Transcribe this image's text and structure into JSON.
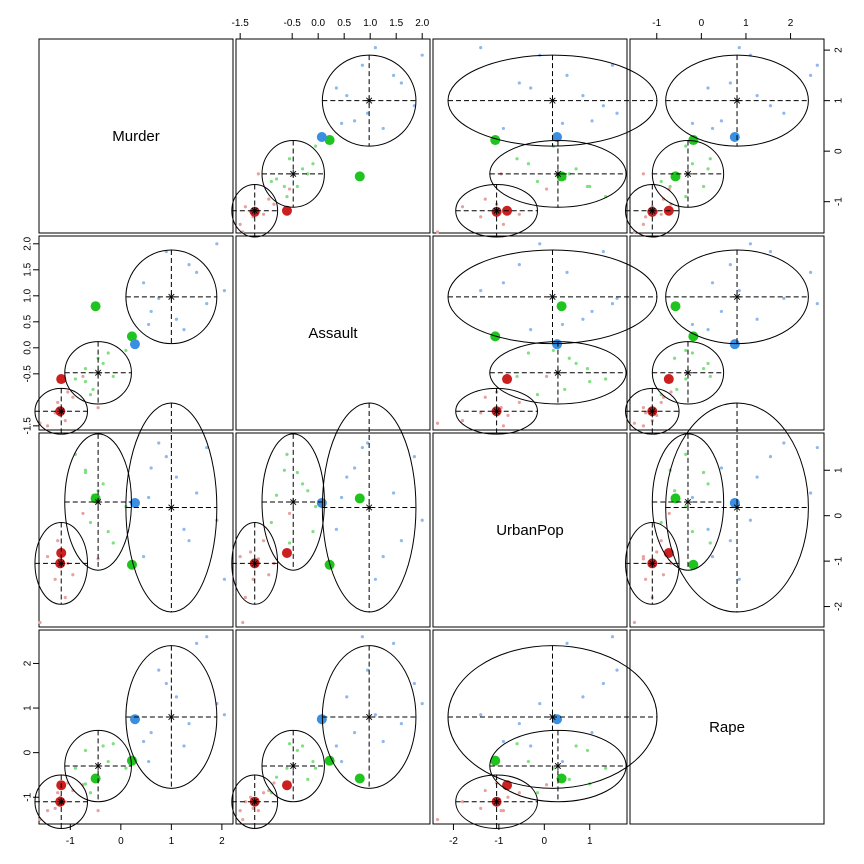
{
  "chart_data": {
    "type": "scatter",
    "layout": "pairs",
    "variables": [
      "Murder",
      "Assault",
      "UrbanPop",
      "Rape"
    ],
    "ranges": {
      "Murder": [
        -1.62,
        2.22
      ],
      "Assault": [
        -1.58,
        2.15
      ],
      "UrbanPop": [
        -2.45,
        1.82
      ],
      "Rape": [
        -1.6,
        2.75
      ]
    },
    "ticks": {
      "Murder": [
        "-1",
        "0",
        "1",
        "2"
      ],
      "Assault": [
        "-1.5",
        "-0.5",
        "0.0",
        "0.5",
        "1.0",
        "1.5",
        "2.0"
      ],
      "UrbanPop": [
        "-2",
        "-1",
        "0",
        "1"
      ],
      "Rape": [
        "-1",
        "0",
        "1",
        "2"
      ]
    },
    "tick_values": {
      "Murder": [
        -1,
        0,
        1,
        2
      ],
      "Assault": [
        -1.5,
        -0.5,
        0.0,
        0.5,
        1.0,
        1.5,
        2.0
      ],
      "UrbanPop": [
        -2,
        -1,
        0,
        1
      ],
      "Rape": [
        -1,
        0,
        1,
        2
      ]
    },
    "clusters": [
      {
        "color": "#e8a0a0",
        "center": {
          "Murder": -1.18,
          "Assault": -1.22,
          "UrbanPop": -1.05,
          "Rape": -1.1
        },
        "sd": {
          "Murder": 0.26,
          "Assault": 0.22,
          "UrbanPop": 0.45,
          "Rape": 0.3
        },
        "points": [
          {
            "Murder": -0.75,
            "Assault": -0.55,
            "UrbanPop": 0.05,
            "Rape": -0.72
          },
          {
            "Murder": -1.05,
            "Assault": -0.85,
            "UrbanPop": -1.05,
            "Rape": -0.68
          },
          {
            "Murder": -1.2,
            "Assault": -1.3,
            "UrbanPop": -0.8,
            "Rape": -1.0
          },
          {
            "Murder": -1.3,
            "Assault": -1.25,
            "UrbanPop": -1.4,
            "Rape": -1.25
          },
          {
            "Murder": -1.1,
            "Assault": -1.4,
            "UrbanPop": -1.8,
            "Rape": -1.1
          },
          {
            "Murder": -1.45,
            "Assault": -1.5,
            "UrbanPop": -0.9,
            "Rape": -1.3
          },
          {
            "Murder": -1.6,
            "Assault": -1.45,
            "UrbanPop": -2.35,
            "Rape": -1.5
          },
          {
            "Murder": -0.45,
            "Assault": -1.15,
            "UrbanPop": -0.95,
            "Rape": -1.3
          },
          {
            "Murder": -0.95,
            "Assault": -0.95,
            "UrbanPop": -1.3,
            "Rape": -0.85
          },
          {
            "Murder": -1.25,
            "Assault": -1.05,
            "UrbanPop": -0.55,
            "Rape": -0.9
          }
        ]
      },
      {
        "color": "#7fe07f",
        "center": {
          "Murder": -0.45,
          "Assault": -0.48,
          "UrbanPop": 0.3,
          "Rape": -0.3
        },
        "sd": {
          "Murder": 0.33,
          "Assault": 0.3,
          "UrbanPop": 0.75,
          "Rape": 0.4
        },
        "points": [
          {
            "Murder": -0.25,
            "Assault": -0.1,
            "UrbanPop": -0.35,
            "Rape": -0.2
          },
          {
            "Murder": -0.55,
            "Assault": -0.8,
            "UrbanPop": 0.45,
            "Rape": -0.55
          },
          {
            "Murder": -0.7,
            "Assault": -0.65,
            "UrbanPop": 1.0,
            "Rape": -0.7
          },
          {
            "Murder": -0.35,
            "Assault": -0.3,
            "UrbanPop": 0.7,
            "Rape": 0.15
          },
          {
            "Murder": -0.6,
            "Assault": -0.9,
            "UrbanPop": -0.15,
            "Rape": -0.9
          },
          {
            "Murder": 0.1,
            "Assault": -0.05,
            "UrbanPop": 0.2,
            "Rape": -0.35
          },
          {
            "Murder": -0.9,
            "Assault": -0.6,
            "UrbanPop": 1.35,
            "Rape": -0.35
          },
          {
            "Murder": -0.15,
            "Assault": -0.55,
            "UrbanPop": -0.6,
            "Rape": 0.2
          },
          {
            "Murder": -0.45,
            "Assault": -0.2,
            "UrbanPop": 0.55,
            "Rape": -0.6
          },
          {
            "Murder": -0.7,
            "Assault": -0.4,
            "UrbanPop": 0.95,
            "Rape": 0.05
          }
        ]
      },
      {
        "color": "#8fb8ee",
        "center": {
          "Murder": 1.0,
          "Assault": 0.98,
          "UrbanPop": 0.18,
          "Rape": 0.8
        },
        "sd": {
          "Murder": 0.45,
          "Assault": 0.45,
          "UrbanPop": 1.15,
          "Rape": 0.8
        },
        "points": [
          {
            "Murder": 1.5,
            "Assault": 1.45,
            "UrbanPop": 0.5,
            "Rape": 2.45
          },
          {
            "Murder": 1.9,
            "Assault": 2.0,
            "UrbanPop": -0.1,
            "Rape": 1.1
          },
          {
            "Murder": 0.6,
            "Assault": 0.7,
            "UrbanPop": 1.05,
            "Rape": 0.45
          },
          {
            "Murder": 1.35,
            "Assault": 1.6,
            "UrbanPop": -0.55,
            "Rape": 0.65
          },
          {
            "Murder": 0.75,
            "Assault": 0.95,
            "UrbanPop": 1.6,
            "Rape": 1.85
          },
          {
            "Murder": 1.1,
            "Assault": 0.55,
            "UrbanPop": 0.85,
            "Rape": 1.25
          },
          {
            "Murder": 0.45,
            "Assault": 1.25,
            "UrbanPop": -0.9,
            "Rape": 0.25
          },
          {
            "Murder": 2.05,
            "Assault": 1.1,
            "UrbanPop": -1.4,
            "Rape": 0.85
          },
          {
            "Murder": 0.9,
            "Assault": 1.85,
            "UrbanPop": 1.3,
            "Rape": 1.55
          },
          {
            "Murder": 1.25,
            "Assault": 0.35,
            "UrbanPop": -0.3,
            "Rape": 0.15
          },
          {
            "Murder": 0.55,
            "Assault": 0.45,
            "UrbanPop": 0.4,
            "Rape": -0.2
          },
          {
            "Murder": 1.7,
            "Assault": 0.85,
            "UrbanPop": 1.5,
            "Rape": 2.6
          }
        ]
      }
    ],
    "highlight_points": [
      {
        "color": "#cc1f1f",
        "values": {
          "Murder": -1.18,
          "Assault": -0.6,
          "UrbanPop": -0.82,
          "Rape": -0.73
        }
      },
      {
        "color": "#cc1f1f",
        "values": {
          "Murder": -1.2,
          "Assault": -1.22,
          "UrbanPop": -1.05,
          "Rape": -1.1
        }
      },
      {
        "color": "#1fc41f",
        "values": {
          "Murder": -0.5,
          "Assault": 0.8,
          "UrbanPop": 0.38,
          "Rape": -0.58
        }
      },
      {
        "color": "#1fc41f",
        "values": {
          "Murder": 0.22,
          "Assault": 0.22,
          "UrbanPop": -1.08,
          "Rape": -0.18
        }
      },
      {
        "color": "#3a8fe0",
        "values": {
          "Murder": 0.28,
          "Assault": 0.07,
          "UrbanPop": 0.28,
          "Rape": 0.75
        }
      }
    ]
  }
}
